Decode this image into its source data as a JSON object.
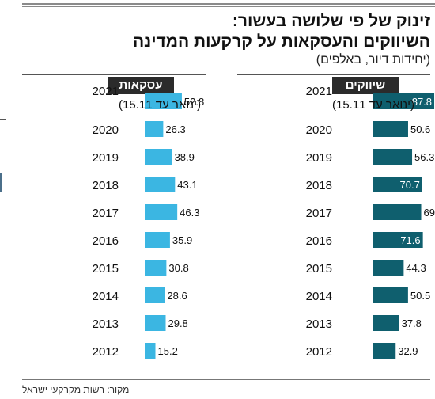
{
  "title_lines": [
    "זינוק של פי שלושה בעשור:",
    "השיווקים והעסקאות על קרקעות המדינה"
  ],
  "subtitle": "(יחידות דיור, באלפים)",
  "source": "מקור: רשות מקרקעי ישראל",
  "colors": {
    "marketing": "#0f5f6e",
    "deals": "#3bb6e2",
    "header_bg": "#2b2b2b"
  },
  "chart_data": [
    {
      "type": "bar",
      "title": "שיווקים",
      "categories": [
        "2021",
        "2020",
        "2019",
        "2018",
        "2017",
        "2016",
        "2015",
        "2014",
        "2013",
        "2012"
      ],
      "category_notes": {
        "2021": "(ינואר עד 15.11)"
      },
      "values": [
        87.8,
        50.6,
        56.3,
        70.7,
        69.2,
        71.6,
        44.3,
        50.5,
        37.8,
        32.9
      ],
      "value_labels": [
        "87.8",
        "50.6",
        "56.3",
        "70.7",
        "69.2",
        "71.6",
        "44.3",
        "50.5",
        "37.8",
        "32.9"
      ],
      "orientation": "horizontal",
      "xlim": [
        0,
        90
      ],
      "color": "#0f5f6e"
    },
    {
      "type": "bar",
      "title": "עסקאות",
      "categories": [
        "2021",
        "2020",
        "2019",
        "2018",
        "2017",
        "2016",
        "2015",
        "2014",
        "2013",
        "2012"
      ],
      "category_notes": {
        "2021": "(ינואר עד 15.11)"
      },
      "values": [
        52.8,
        26.3,
        38.9,
        43.1,
        46.3,
        35.9,
        30.8,
        28.6,
        29.8,
        15.2
      ],
      "value_labels": [
        "52.8",
        "26.3",
        "38.9",
        "43.1",
        "46.3",
        "35.9",
        "30.8",
        "28.6",
        "29.8",
        "15.2"
      ],
      "orientation": "horizontal",
      "xlim": [
        0,
        90
      ],
      "color": "#3bb6e2"
    }
  ]
}
